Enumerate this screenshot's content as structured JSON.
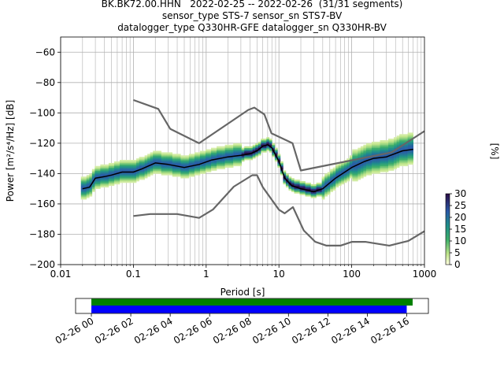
{
  "title_lines": [
    "BK.BK72.00.HHN   2022-02-25 -- 2022-02-26  (31/31 segments)",
    "sensor_type STS-7 sensor_sn STS7-BV",
    "datalogger_type Q330HR-GFE datalogger_sn Q330HR-BV"
  ],
  "chart_data": [
    {
      "type": "heatmap",
      "name": "ppsd",
      "xlabel": "Period [s]",
      "ylabel": "Power [m²/s⁴/Hz] [dB]",
      "xscale": "log",
      "xlim": [
        0.01,
        1000
      ],
      "ylim": [
        -200,
        -50
      ],
      "x_ticks": [
        0.01,
        0.1,
        1,
        10,
        100,
        1000
      ],
      "x_tick_labels": [
        "0.01",
        "0.1",
        "1",
        "10",
        "100",
        "1000"
      ],
      "y_ticks": [
        -200,
        -180,
        -160,
        -140,
        -120,
        -100,
        -80,
        -60
      ],
      "y_tick_labels": [
        "−200",
        "−180",
        "−160",
        "−140",
        "−120",
        "−100",
        "−80",
        "−60"
      ],
      "grid": true,
      "colorbar": {
        "label": "[%]",
        "min": 0,
        "max": 30,
        "ticks": [
          0,
          5,
          10,
          15,
          20,
          25,
          30
        ],
        "tick_labels": [
          "0",
          "5",
          "10",
          "15",
          "20",
          "25",
          "30"
        ],
        "colormap": "pqlx-like (light yellow → green → blue → dark purple)"
      },
      "series": [
        {
          "role": "mean",
          "color": "#000000",
          "x": [
            0.02,
            0.025,
            0.03,
            0.04,
            0.05,
            0.07,
            0.1,
            0.13,
            0.2,
            0.3,
            0.5,
            0.8,
            1.2,
            2,
            3,
            4,
            5,
            6,
            7,
            8,
            10,
            12,
            15,
            20,
            30,
            40,
            60,
            100,
            150,
            200,
            300,
            500,
            700
          ],
          "y": [
            -150,
            -149,
            -143,
            -142,
            -141,
            -139,
            -139,
            -137,
            -133,
            -134,
            -136,
            -134,
            -131,
            -129,
            -128,
            -127,
            -125,
            -122,
            -121,
            -123,
            -132,
            -143,
            -148,
            -150,
            -152,
            -150,
            -143,
            -136,
            -132,
            -130,
            -129,
            -125,
            -124
          ]
        },
        {
          "role": "noise-model-high",
          "color": "#666666",
          "x": [
            0.1,
            0.22,
            0.32,
            0.8,
            3.8,
            4.6,
            6.3,
            7.9,
            15.4,
            20,
            354.8,
            1000
          ],
          "y": [
            -91.5,
            -97.4,
            -110.5,
            -120,
            -98,
            -96.5,
            -101,
            -113.5,
            -120,
            -138,
            -126,
            -112
          ]
        },
        {
          "role": "noise-model-low",
          "color": "#666666",
          "x": [
            0.1,
            0.17,
            0.4,
            0.8,
            1.24,
            2.4,
            4.3,
            5,
            6,
            10,
            12,
            15.6,
            21.9,
            31.6,
            45,
            70,
            101,
            154,
            328,
            600,
            1000
          ],
          "y": [
            -168,
            -166.7,
            -166.7,
            -169.2,
            -163.7,
            -148.6,
            -141.1,
            -141.1,
            -149,
            -163.8,
            -166.2,
            -162.1,
            -177.5,
            -185,
            -187.5,
            -187.5,
            -185,
            -185,
            -187.5,
            -184.4,
            -178
          ]
        }
      ]
    },
    {
      "type": "bar",
      "name": "data-coverage",
      "x_tick_labels": [
        "02-26 00",
        "02-26 02",
        "02-26 04",
        "02-26 06",
        "02-26 08",
        "02-26 10",
        "02-26 12",
        "02-26 14",
        "02-26 16"
      ],
      "x_ticks_hours": [
        0,
        2,
        4,
        6,
        8,
        10,
        12,
        14,
        16
      ],
      "xlim_hours": [
        -0.8,
        17.1
      ],
      "series": [
        {
          "role": "data-available",
          "color": "#008000",
          "start_hours": 0,
          "end_hours": 16.3
        },
        {
          "role": "data-used",
          "color": "#0000ff",
          "start_hours": 0,
          "end_hours": 16.0
        }
      ]
    }
  ]
}
